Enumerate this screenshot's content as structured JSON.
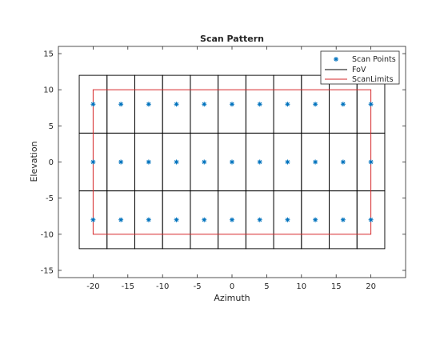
{
  "chart_data": {
    "type": "scatter",
    "title": "Scan Pattern",
    "xlabel": "Azimuth",
    "ylabel": "Elevation",
    "xlim": [
      -25,
      25
    ],
    "ylim": [
      -16,
      16
    ],
    "xticks": [
      -20,
      -15,
      -10,
      -5,
      0,
      5,
      10,
      15,
      20
    ],
    "yticks": [
      -15,
      -10,
      -5,
      0,
      5,
      10,
      15
    ],
    "grid": false,
    "legend_location": "top-right",
    "scan_points": {
      "name": "Scan Points",
      "color": "#0072bd",
      "marker": "asterisk",
      "azimuths": [
        -20,
        -16,
        -12,
        -8,
        -4,
        0,
        4,
        8,
        12,
        16,
        20
      ],
      "elevations": [
        8,
        0,
        -8
      ]
    },
    "fov": {
      "name": "FoV",
      "color": "#000000",
      "half_width": [
        2,
        4
      ]
    },
    "scan_limits": {
      "name": "ScanLimits",
      "color": "#d62728",
      "x": [
        -20,
        20
      ],
      "y": [
        -10,
        10
      ]
    }
  }
}
